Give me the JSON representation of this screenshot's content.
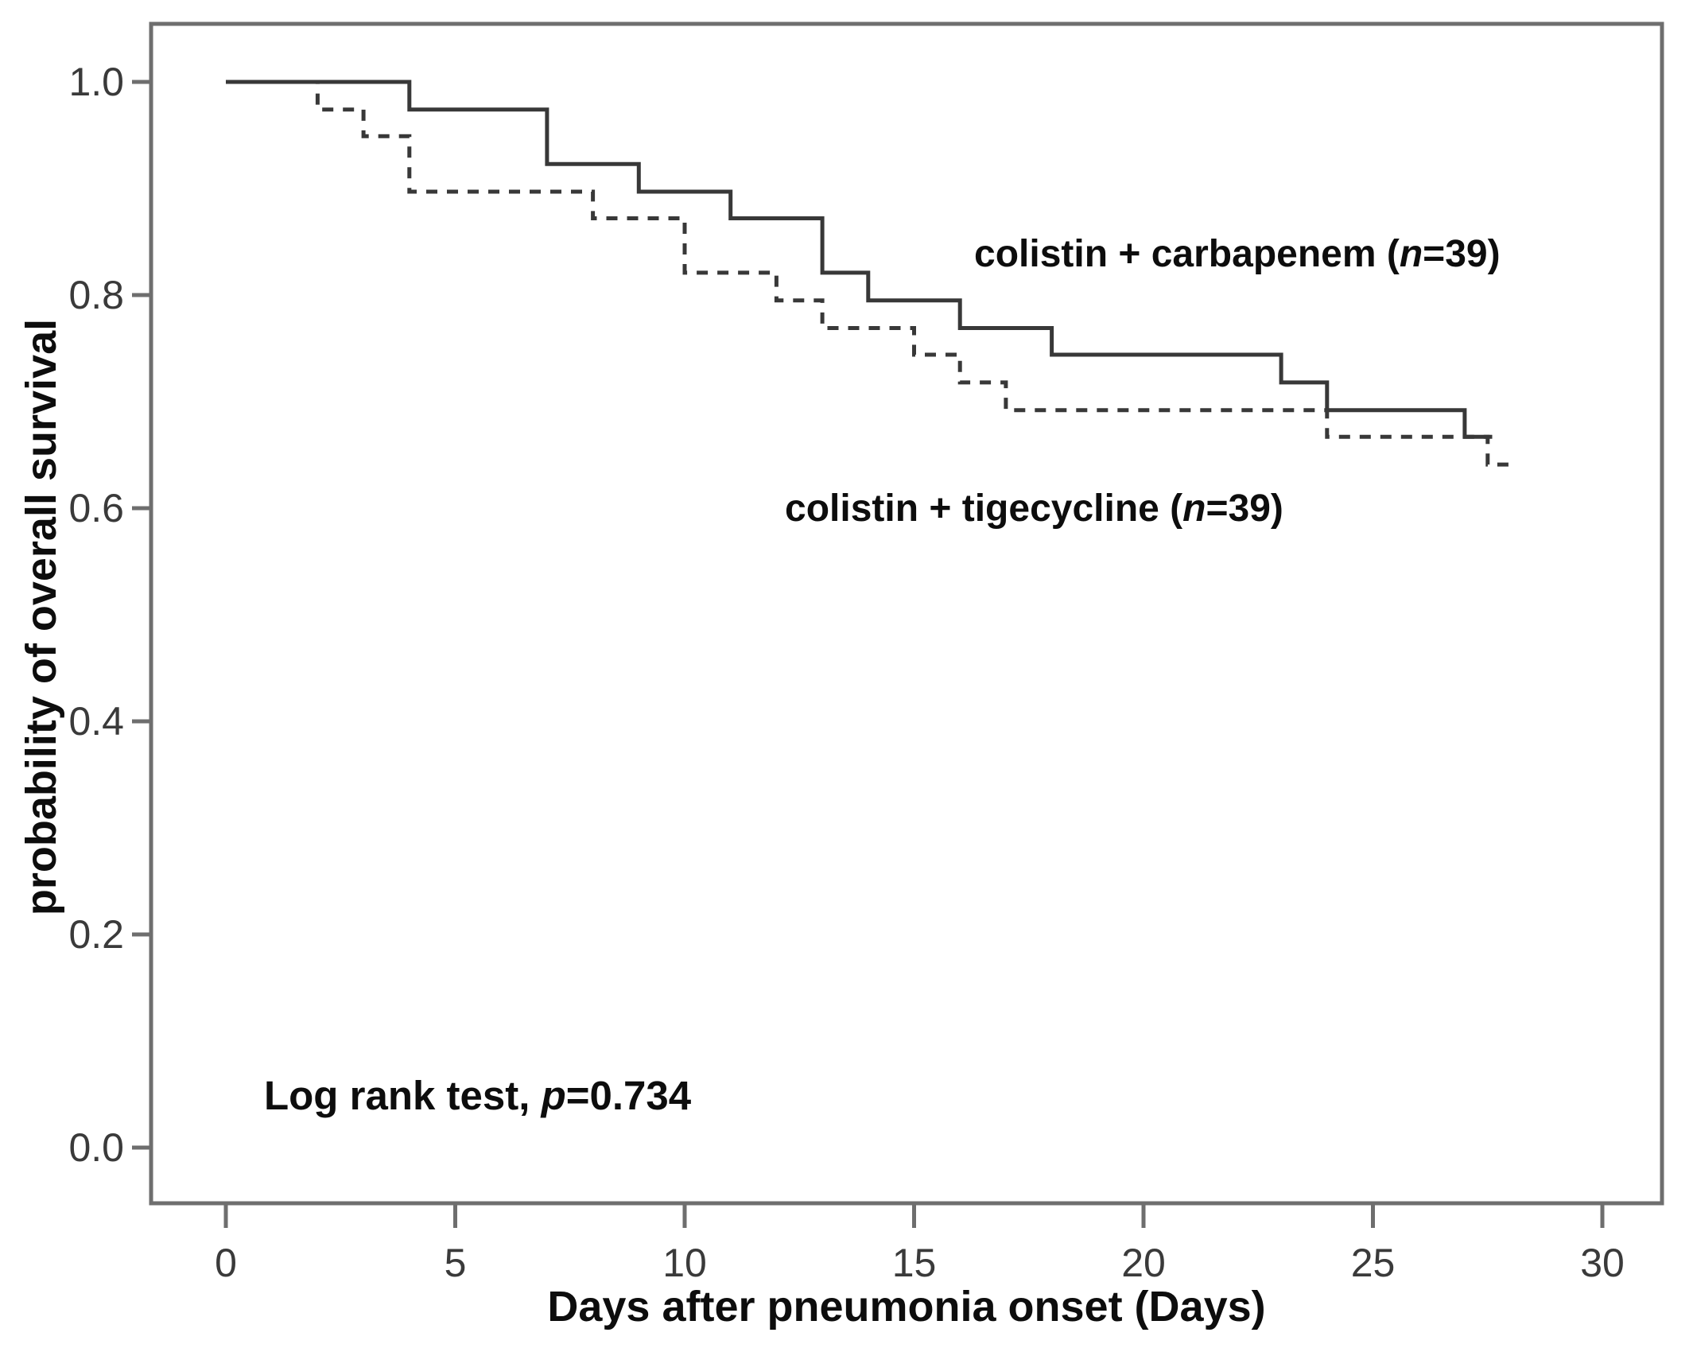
{
  "labels": {
    "carbapenem": {
      "prefix": "colistin + carbapenem (",
      "italic": "n",
      "suffix": "=39)"
    },
    "tigecycline": {
      "prefix": "colistin + tigecycline (",
      "italic": "n",
      "suffix": "=39)"
    },
    "logrank": {
      "prefix": "Log rank test, ",
      "italic": "p",
      "suffix": "=0.734"
    }
  },
  "chart_data": {
    "type": "line",
    "subtype": "kaplan-meier-step-curves",
    "title": "",
    "xlabel": "Days after pneumonia onset (Days)",
    "ylabel": "probability of overall survival",
    "xlim": [
      -1.8,
      31.3
    ],
    "ylim": [
      -0.06,
      1.06
    ],
    "xticks": [
      0,
      5,
      10,
      15,
      20,
      25,
      30
    ],
    "yticks": [
      0.0,
      0.2,
      0.4,
      0.6,
      0.8,
      1.0
    ],
    "grid": false,
    "legend_position": "inline-text-labels",
    "annotation": "Log rank test, p=0.734",
    "frame_color": "#6e6e6e",
    "curve_color": "#383838",
    "series": [
      {
        "name": "colistin + carbapenem (n=39)",
        "n": 39,
        "style": "solid",
        "points": [
          [
            0,
            1.0
          ],
          [
            4,
            0.974
          ],
          [
            7,
            0.923
          ],
          [
            9,
            0.897
          ],
          [
            11,
            0.872
          ],
          [
            13,
            0.821
          ],
          [
            14,
            0.795
          ],
          [
            16,
            0.769
          ],
          [
            18,
            0.744
          ],
          [
            23,
            0.718
          ],
          [
            24,
            0.692
          ],
          [
            27,
            0.667
          ],
          [
            27.6,
            0.667
          ]
        ]
      },
      {
        "name": "colistin + tigecycline (n=39)",
        "n": 39,
        "style": "dashed",
        "points": [
          [
            0,
            1.0
          ],
          [
            2,
            0.974
          ],
          [
            3,
            0.949
          ],
          [
            4,
            0.897
          ],
          [
            8,
            0.872
          ],
          [
            10,
            0.821
          ],
          [
            12,
            0.795
          ],
          [
            13,
            0.769
          ],
          [
            15,
            0.744
          ],
          [
            16,
            0.718
          ],
          [
            17,
            0.692
          ],
          [
            24,
            0.667
          ],
          [
            27.5,
            0.641
          ],
          [
            28.1,
            0.641
          ]
        ]
      }
    ]
  }
}
